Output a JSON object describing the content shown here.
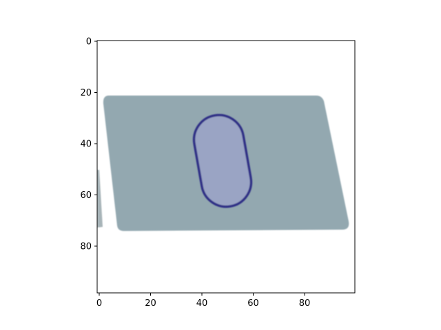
{
  "image": {
    "subject": "card",
    "card_color": "#93a8b0",
    "oval_fill": "#9aa4c4",
    "oval_stroke": "#2e2f86",
    "background": "#ffffff"
  },
  "axes": {
    "xlim": [
      0,
      99
    ],
    "ylim": [
      99,
      0
    ],
    "x_ticks": [
      0,
      20,
      40,
      60,
      80
    ],
    "y_ticks": [
      0,
      20,
      40,
      60,
      80
    ],
    "x_tick_labels": [
      "0",
      "20",
      "40",
      "60",
      "80"
    ],
    "y_tick_labels": [
      "0",
      "20",
      "40",
      "60",
      "80"
    ]
  }
}
